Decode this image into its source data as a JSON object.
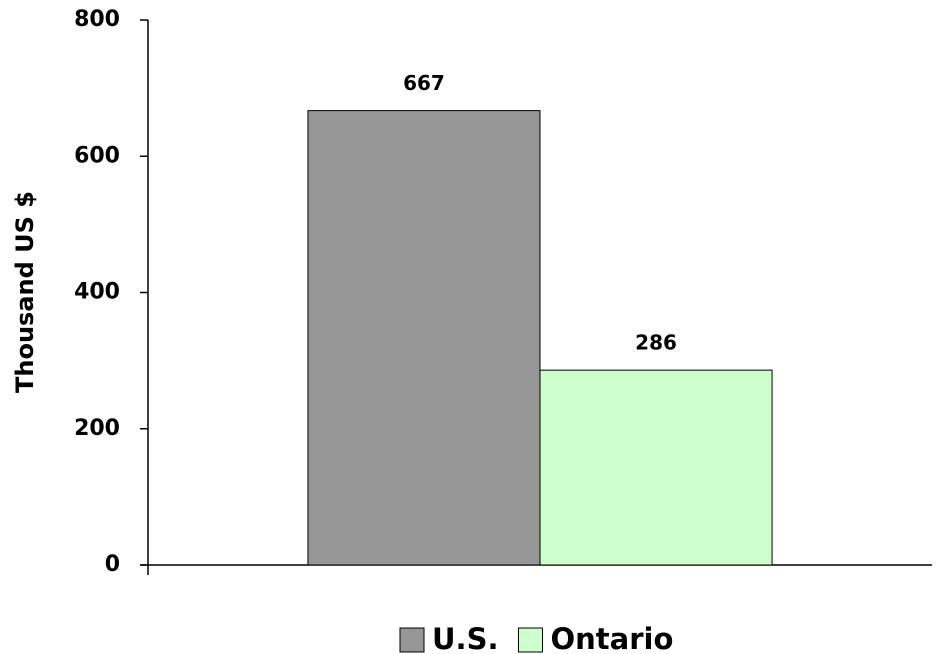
{
  "chart_data": {
    "type": "bar",
    "y_label": "Thousand US $",
    "categories": [
      null
    ],
    "series": [
      {
        "name": "U.S.",
        "color": "#969696",
        "values": [
          667
        ]
      },
      {
        "name": "Ontario",
        "color": "#ccffcc",
        "values": [
          286
        ]
      }
    ],
    "ylim": [
      0,
      800
    ],
    "yticks": [
      0,
      200,
      400,
      600,
      800
    ],
    "grid": false,
    "legend": "bottom"
  }
}
